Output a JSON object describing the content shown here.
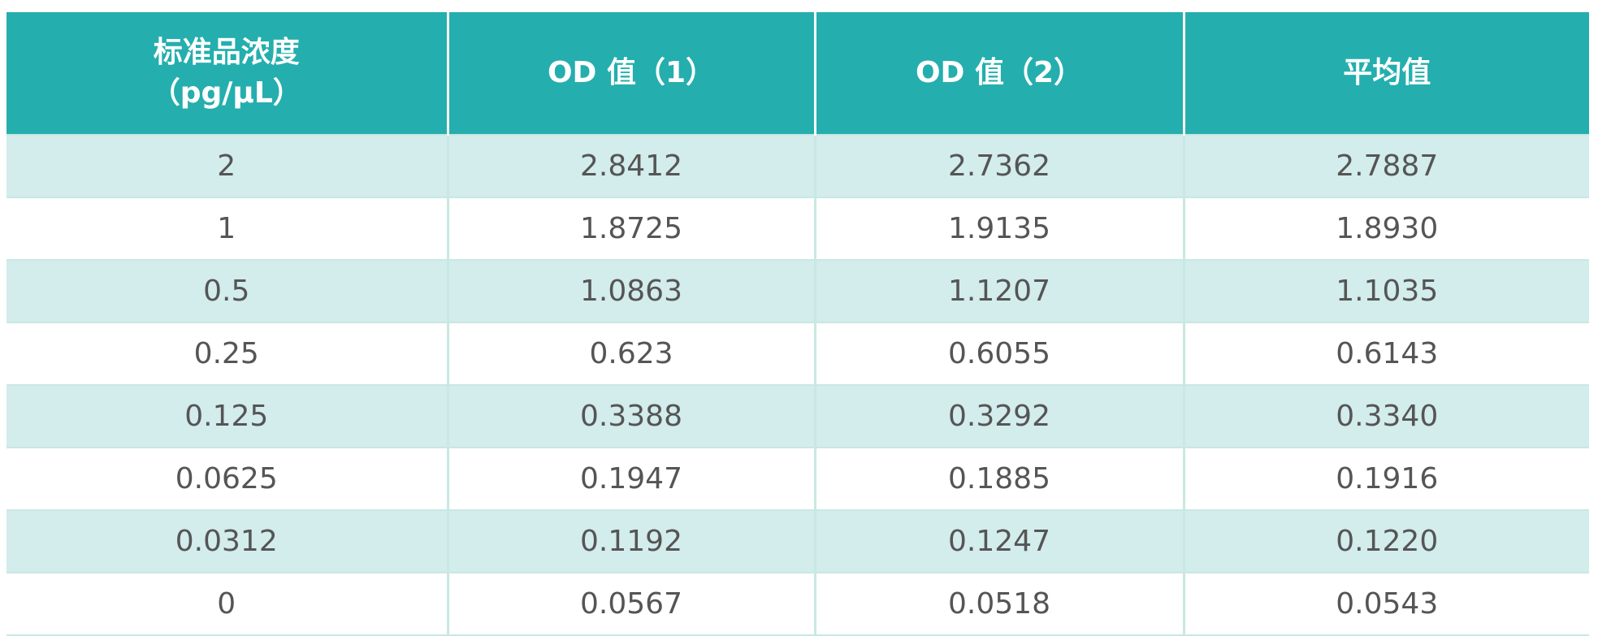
{
  "table": {
    "header": [
      "标准品浓度\n（pg/μL）",
      "OD 值（1）",
      "OD 值（2）",
      "平均值"
    ],
    "rows": [
      [
        "2",
        "2.8412",
        "2.7362",
        "2.7887"
      ],
      [
        "1",
        "1.8725",
        "1.9135",
        "1.8930"
      ],
      [
        "0.5",
        "1.0863",
        "1.1207",
        "1.1035"
      ],
      [
        "0.25",
        "0.623",
        "0.6055",
        "0.6143"
      ],
      [
        "0.125",
        "0.3388",
        "0.3292",
        "0.3340"
      ],
      [
        "0.0625",
        "0.1947",
        "0.1885",
        "0.1916"
      ],
      [
        "0.0312",
        "0.1192",
        "0.1247",
        "0.1220"
      ],
      [
        "0",
        "0.0567",
        "0.0518",
        "0.0543"
      ]
    ]
  }
}
